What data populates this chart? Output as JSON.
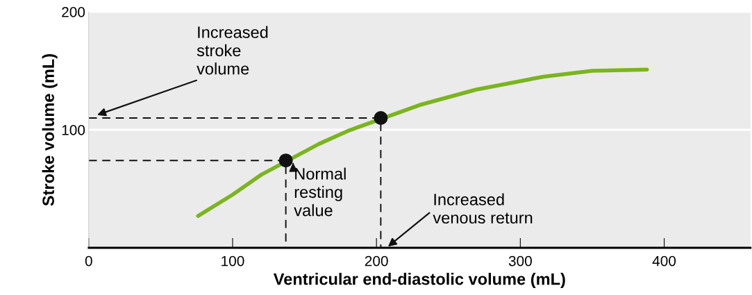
{
  "chart_data": {
    "type": "line",
    "xlabel": "Ventricular end-diastolic volume (mL)",
    "ylabel": "Stroke volume (mL)",
    "xlim": [
      0,
      460
    ],
    "ylim": [
      0,
      200
    ],
    "xticks": [
      0,
      100,
      200,
      300,
      400
    ],
    "yticks": [
      100,
      200
    ],
    "grid": "y",
    "series": [
      {
        "color": "#7ab51d",
        "line_style": "solid",
        "x": [
          76,
          100,
          120,
          160,
          180,
          230,
          269,
          316,
          350,
          388
        ],
        "values": [
          27,
          45,
          62,
          88,
          99,
          121,
          134,
          145,
          150,
          151
        ]
      },
      {
        "type": "line",
        "color": "#111111",
        "line_style": "dashed",
        "x": [
          0,
          137,
          137
        ],
        "values": [
          74,
          74,
          0
        ]
      },
      {
        "type": "line",
        "color": "#111111",
        "line_style": "dashed",
        "x": [
          0,
          203,
          203
        ],
        "values": [
          110,
          110,
          0
        ]
      },
      {
        "type": "scatter",
        "color": "#111111",
        "marker": "circle",
        "x": [
          137,
          203
        ],
        "values": [
          74,
          110
        ]
      }
    ],
    "annotations": [
      "Increased\nstroke\nvolume",
      {
        "text": "Normal\nresting\nvalue",
        "x": 142,
        "y": 72
      },
      "Increased\nvenous return"
    ]
  }
}
